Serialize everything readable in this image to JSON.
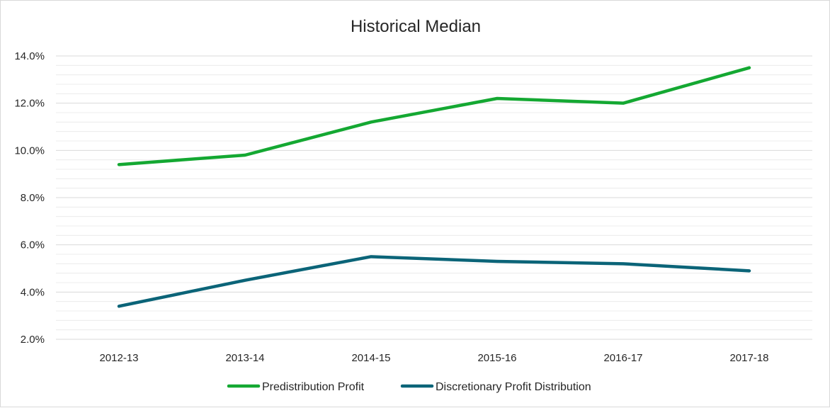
{
  "chart_data": {
    "type": "line",
    "title": "Historical Median",
    "xlabel": "",
    "ylabel": "",
    "categories": [
      "2012-13",
      "2013-14",
      "2014-15",
      "2015-16",
      "2016-17",
      "2017-18"
    ],
    "ylim": [
      2.0,
      14.0
    ],
    "yticks": [
      2.0,
      4.0,
      6.0,
      8.0,
      10.0,
      12.0,
      14.0
    ],
    "ytick_labels": [
      "2.0%",
      "4.0%",
      "6.0%",
      "8.0%",
      "10.0%",
      "12.0%",
      "14.0%"
    ],
    "minor_grid_step": 0.4,
    "grid": true,
    "legend_position": "bottom",
    "series": [
      {
        "name": "Predistribution Profit",
        "color": "#14a832",
        "values": [
          9.4,
          9.8,
          11.2,
          12.2,
          12.0,
          13.5
        ]
      },
      {
        "name": "Discretionary Profit Distribution",
        "color": "#0b6478",
        "values": [
          3.4,
          4.5,
          5.5,
          5.3,
          5.2,
          4.9
        ]
      }
    ]
  }
}
